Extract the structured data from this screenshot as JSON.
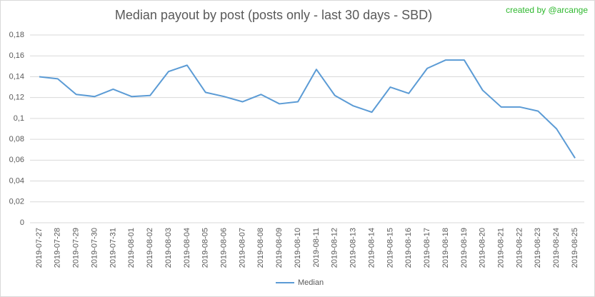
{
  "chart_data": {
    "type": "line",
    "title": "Median payout by post (posts only - last 30 days - SBD)",
    "annotation": "created by @arcange",
    "categories": [
      "2019-07-27",
      "2019-07-28",
      "2019-07-29",
      "2019-07-30",
      "2019-07-31",
      "2019-08-01",
      "2019-08-02",
      "2019-08-03",
      "2019-08-04",
      "2019-08-05",
      "2019-08-06",
      "2019-08-07",
      "2019-08-08",
      "2019-08-09",
      "2019-08-10",
      "2019-08-11",
      "2019-08-12",
      "2019-08-13",
      "2019-08-14",
      "2019-08-15",
      "2019-08-16",
      "2019-08-17",
      "2019-08-18",
      "2019-08-19",
      "2019-08-20",
      "2019-08-21",
      "2019-08-22",
      "2019-08-23",
      "2019-08-24",
      "2019-08-25"
    ],
    "series": [
      {
        "name": "Median",
        "color": "#5b9bd5",
        "values": [
          0.14,
          0.138,
          0.123,
          0.121,
          0.128,
          0.121,
          0.122,
          0.145,
          0.151,
          0.125,
          0.121,
          0.116,
          0.123,
          0.114,
          0.116,
          0.147,
          0.122,
          0.112,
          0.106,
          0.13,
          0.124,
          0.148,
          0.156,
          0.156,
          0.127,
          0.111,
          0.111,
          0.107,
          0.09,
          0.062
        ]
      }
    ],
    "ylim": [
      0,
      0.18
    ],
    "yticks": [
      0,
      {
        "value": 0.02,
        "label": "0,02"
      },
      {
        "value": 0.04,
        "label": "0,04"
      },
      {
        "value": 0.06,
        "label": "0,06"
      },
      {
        "value": 0.08,
        "label": "0,08"
      },
      {
        "value": 0.1,
        "label": "0,1"
      },
      {
        "value": 0.12,
        "label": "0,12"
      },
      {
        "value": 0.14,
        "label": "0,14"
      },
      {
        "value": 0.16,
        "label": "0,16"
      },
      {
        "value": 0.18,
        "label": "0,18"
      }
    ],
    "grid": true,
    "legend": "bottom"
  }
}
